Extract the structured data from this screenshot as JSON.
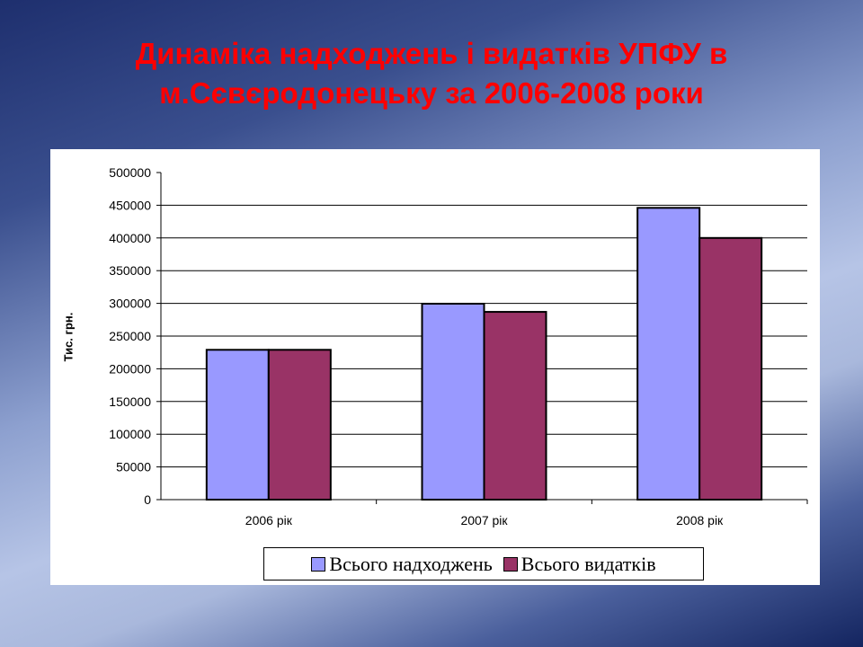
{
  "slide": {
    "title_line1": "Динаміка надходжень і видатків УПФУ в",
    "title_line2": "м.Сєвєродонецьку за 2006-2008 роки"
  },
  "chart_data": {
    "type": "bar",
    "title": "Динаміка надходжень і видатків УПФУ в м.Сєвєродонецьку за 2006-2008 роки",
    "xlabel": "",
    "ylabel": "Тис. грн.",
    "categories": [
      "2006 рік",
      "2007 рік",
      "2008 рік"
    ],
    "series": [
      {
        "name": "Всього надходжень",
        "color": "#9999ff",
        "values": [
          229000,
          299500,
          446000
        ]
      },
      {
        "name": "Всього видатків",
        "color": "#993366",
        "values": [
          229000,
          287000,
          400000
        ]
      }
    ],
    "ylim": [
      0,
      500000
    ],
    "yticks": [
      "0",
      "50000",
      "100000",
      "150000",
      "200000",
      "250000",
      "300000",
      "350000",
      "400000",
      "450000",
      "500000"
    ],
    "grid": true,
    "legend_position": "bottom"
  }
}
